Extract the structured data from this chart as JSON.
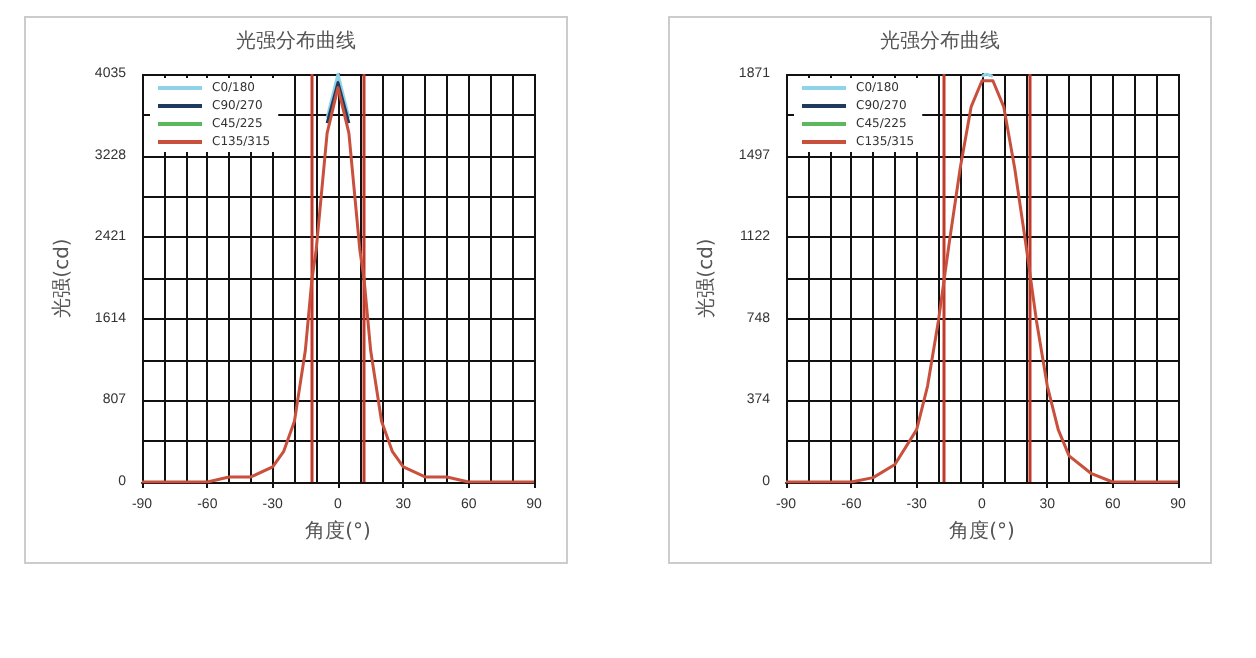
{
  "chart_data": [
    {
      "type": "line",
      "title": "光强分布曲线",
      "xlabel": "角度(°)",
      "ylabel": "光强(cd)",
      "legend": "top left",
      "grid": true,
      "marker": "none",
      "line_style": "solid",
      "x": [
        -90,
        -70,
        -60,
        -50,
        -40,
        -30,
        -25,
        -20,
        -15,
        -12,
        -10,
        -5,
        0,
        5,
        10,
        12,
        15,
        20,
        25,
        30,
        40,
        50,
        60,
        70,
        90
      ],
      "xlim": [
        -90,
        90
      ],
      "xticks": [
        -90,
        -60,
        -30,
        0,
        30,
        60,
        90
      ],
      "ylim": [
        0,
        4035
      ],
      "yticks": [
        0,
        807,
        1614,
        2421,
        3228,
        4035
      ],
      "ref_lines": [
        {
          "axis": "x",
          "value": -12,
          "color": "#c0392b"
        },
        {
          "axis": "x",
          "value": 12,
          "color": "#c0392b"
        }
      ],
      "series": [
        {
          "name": "C0/180",
          "color": "#8fd3e8",
          "values": [
            null,
            null,
            null,
            null,
            null,
            null,
            null,
            null,
            null,
            null,
            null,
            3600,
            4035,
            3600,
            null,
            null,
            null,
            null,
            null,
            null,
            null,
            null,
            null,
            null,
            null
          ]
        },
        {
          "name": "C90/270",
          "color": "#1f3a5f",
          "values": [
            null,
            null,
            null,
            null,
            null,
            null,
            null,
            null,
            null,
            null,
            null,
            3550,
            3950,
            3550,
            null,
            null,
            null,
            null,
            null,
            null,
            null,
            null,
            null,
            null,
            null
          ]
        },
        {
          "name": "C45/225",
          "color": "#5cb85c",
          "values": [
            null,
            null,
            null,
            null,
            null,
            null,
            null,
            null,
            null,
            null,
            null,
            null,
            null,
            null,
            null,
            null,
            null,
            null,
            null,
            null,
            null,
            null,
            null,
            null,
            null
          ]
        },
        {
          "name": "C135/315",
          "color": "#c8503c",
          "values": [
            0,
            0,
            0,
            50,
            50,
            150,
            300,
            600,
            1300,
            2000,
            2300,
            3450,
            3900,
            3450,
            2300,
            2000,
            1300,
            600,
            300,
            150,
            50,
            50,
            0,
            0,
            0
          ]
        }
      ]
    },
    {
      "type": "line",
      "title": "光强分布曲线",
      "xlabel": "角度(°)",
      "ylabel": "光强(cd)",
      "legend": "top left",
      "grid": true,
      "marker": "none",
      "line_style": "solid",
      "x": [
        -90,
        -60,
        -50,
        -40,
        -30,
        -25,
        -20,
        -15,
        -10,
        -5,
        0,
        2,
        5,
        10,
        15,
        20,
        25,
        30,
        35,
        40,
        50,
        60,
        90
      ],
      "xlim": [
        -90,
        90
      ],
      "xticks": [
        -90,
        -60,
        -30,
        0,
        30,
        60,
        90
      ],
      "ylim": [
        0,
        1871
      ],
      "yticks": [
        0,
        374,
        748,
        1122,
        1497,
        1871
      ],
      "ref_lines": [
        {
          "axis": "x",
          "value": -18,
          "color": "#c0392b"
        },
        {
          "axis": "x",
          "value": 22,
          "color": "#c0392b"
        }
      ],
      "series": [
        {
          "name": "C0/180",
          "color": "#8fd3e8",
          "values": [
            null,
            null,
            null,
            null,
            null,
            null,
            null,
            null,
            null,
            null,
            1860,
            1871,
            1860,
            null,
            null,
            null,
            null,
            null,
            null,
            null,
            null,
            null,
            null
          ]
        },
        {
          "name": "C90/270",
          "color": "#1f3a5f",
          "values": [
            null,
            null,
            null,
            null,
            null,
            null,
            null,
            null,
            null,
            null,
            null,
            null,
            null,
            null,
            null,
            null,
            null,
            null,
            null,
            null,
            null,
            null,
            null
          ]
        },
        {
          "name": "C45/225",
          "color": "#5cb85c",
          "values": [
            null,
            null,
            null,
            null,
            null,
            null,
            null,
            null,
            null,
            null,
            null,
            null,
            null,
            null,
            null,
            null,
            null,
            null,
            null,
            null,
            null,
            null,
            null
          ]
        },
        {
          "name": "C135/315",
          "color": "#c8503c",
          "values": [
            0,
            0,
            20,
            80,
            240,
            440,
            740,
            1100,
            1440,
            1720,
            1840,
            1840,
            1840,
            1720,
            1440,
            1100,
            740,
            440,
            240,
            120,
            40,
            0,
            0
          ]
        }
      ]
    }
  ]
}
